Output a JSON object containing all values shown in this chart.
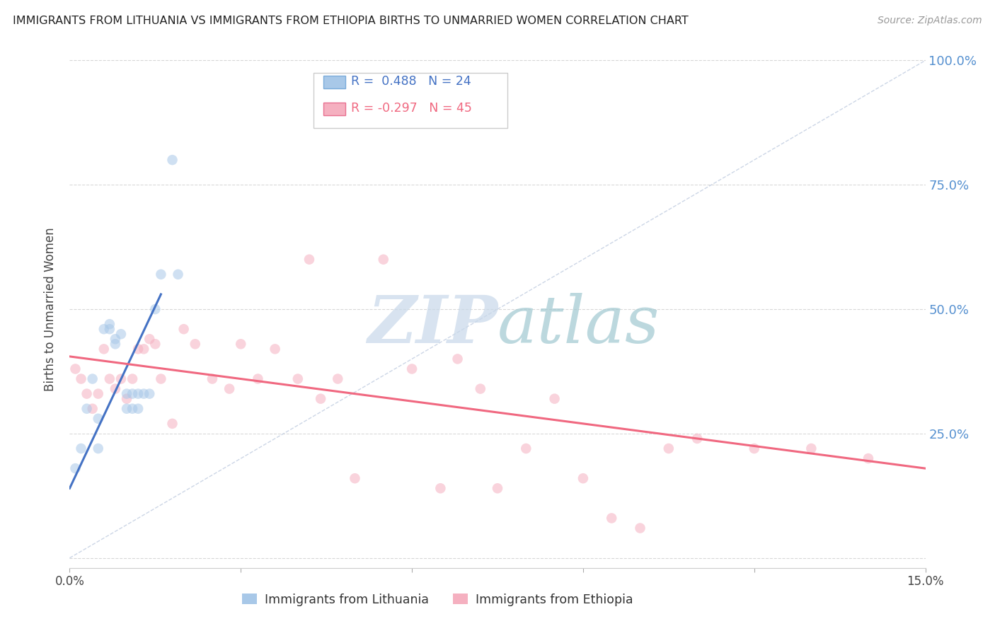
{
  "title": "IMMIGRANTS FROM LITHUANIA VS IMMIGRANTS FROM ETHIOPIA BIRTHS TO UNMARRIED WOMEN CORRELATION CHART",
  "source": "Source: ZipAtlas.com",
  "ylabel": "Births to Unmarried Women",
  "xmin": 0.0,
  "xmax": 0.15,
  "ymin": -0.02,
  "ymax": 1.02,
  "yticks": [
    0.0,
    0.25,
    0.5,
    0.75,
    1.0
  ],
  "ytick_labels_right": [
    "",
    "25.0%",
    "50.0%",
    "75.0%",
    "100.0%"
  ],
  "xticks": [
    0.0,
    0.03,
    0.06,
    0.09,
    0.12,
    0.15
  ],
  "xtick_labels": [
    "0.0%",
    "",
    "",
    "",
    "",
    "15.0%"
  ],
  "color_lithuania": "#a8c8e8",
  "color_ethiopia": "#f5b0c0",
  "color_lit_line": "#4472c4",
  "color_eth_line": "#f06880",
  "color_right_axis": "#5590d0",
  "color_grid": "#d8d8d8",
  "lit_x": [
    0.001,
    0.002,
    0.003,
    0.004,
    0.005,
    0.005,
    0.006,
    0.007,
    0.007,
    0.008,
    0.008,
    0.009,
    0.01,
    0.01,
    0.011,
    0.011,
    0.012,
    0.012,
    0.013,
    0.014,
    0.015,
    0.016,
    0.018,
    0.019
  ],
  "lit_y": [
    0.18,
    0.22,
    0.3,
    0.36,
    0.28,
    0.22,
    0.46,
    0.47,
    0.46,
    0.44,
    0.43,
    0.45,
    0.33,
    0.3,
    0.33,
    0.3,
    0.33,
    0.3,
    0.33,
    0.33,
    0.5,
    0.57,
    0.8,
    0.57
  ],
  "eth_x": [
    0.001,
    0.002,
    0.003,
    0.004,
    0.005,
    0.006,
    0.007,
    0.008,
    0.009,
    0.01,
    0.011,
    0.012,
    0.013,
    0.014,
    0.015,
    0.016,
    0.018,
    0.02,
    0.022,
    0.025,
    0.028,
    0.03,
    0.033,
    0.036,
    0.04,
    0.042,
    0.044,
    0.047,
    0.05,
    0.055,
    0.06,
    0.065,
    0.068,
    0.072,
    0.075,
    0.08,
    0.085,
    0.09,
    0.095,
    0.1,
    0.105,
    0.11,
    0.12,
    0.13,
    0.14
  ],
  "eth_y": [
    0.38,
    0.36,
    0.33,
    0.3,
    0.33,
    0.42,
    0.36,
    0.34,
    0.36,
    0.32,
    0.36,
    0.42,
    0.42,
    0.44,
    0.43,
    0.36,
    0.27,
    0.46,
    0.43,
    0.36,
    0.34,
    0.43,
    0.36,
    0.42,
    0.36,
    0.6,
    0.32,
    0.36,
    0.16,
    0.6,
    0.38,
    0.14,
    0.4,
    0.34,
    0.14,
    0.22,
    0.32,
    0.16,
    0.08,
    0.06,
    0.22,
    0.24,
    0.22,
    0.22,
    0.2
  ],
  "lit_line_x": [
    0.0,
    0.016
  ],
  "lit_line_y": [
    0.14,
    0.53
  ],
  "eth_line_x": [
    0.0,
    0.15
  ],
  "eth_line_y": [
    0.405,
    0.18
  ],
  "diag_line_x": [
    0.0,
    0.15
  ],
  "diag_line_y": [
    0.0,
    1.0
  ],
  "marker_size": 110,
  "marker_alpha": 0.55,
  "watermark_zip": "ZIP",
  "watermark_atlas": "atlas",
  "watermark_color_zip": "#c0d0e8",
  "watermark_color_atlas": "#a8c8d0"
}
